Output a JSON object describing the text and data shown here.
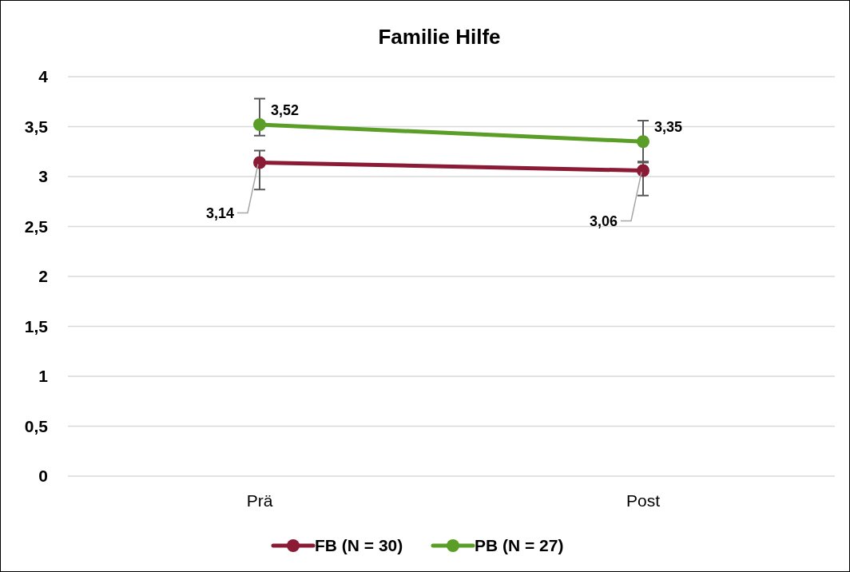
{
  "chart_data": {
    "type": "line",
    "title": "Familie Hilfe",
    "categories": [
      "Prä",
      "Post"
    ],
    "series": [
      {
        "name": "FB (N = 30)",
        "color": "#8b1a35",
        "values": [
          3.14,
          3.06
        ],
        "value_labels": [
          "3,14",
          "3,06"
        ],
        "errors": [
          [
            2.87,
            3.26
          ],
          [
            2.81,
            3.15
          ]
        ]
      },
      {
        "name": "PB (N = 27)",
        "color": "#5a9e27",
        "values": [
          3.52,
          3.35
        ],
        "value_labels": [
          "3,52",
          "3,35"
        ],
        "errors": [
          [
            3.41,
            3.78
          ],
          [
            3.14,
            3.56
          ]
        ]
      }
    ],
    "ylim": [
      0,
      4
    ],
    "yticks": [
      {
        "value": 0,
        "label": "0"
      },
      {
        "value": 0.5,
        "label": "0,5"
      },
      {
        "value": 1,
        "label": "1"
      },
      {
        "value": 1.5,
        "label": "1,5"
      },
      {
        "value": 2,
        "label": "2"
      },
      {
        "value": 2.5,
        "label": "2,5"
      },
      {
        "value": 3,
        "label": "3"
      },
      {
        "value": 3.5,
        "label": "3,5"
      },
      {
        "value": 4,
        "label": "4"
      }
    ],
    "grid": "y",
    "legend": "bottom",
    "marker": "circle",
    "line_style": "solid"
  }
}
